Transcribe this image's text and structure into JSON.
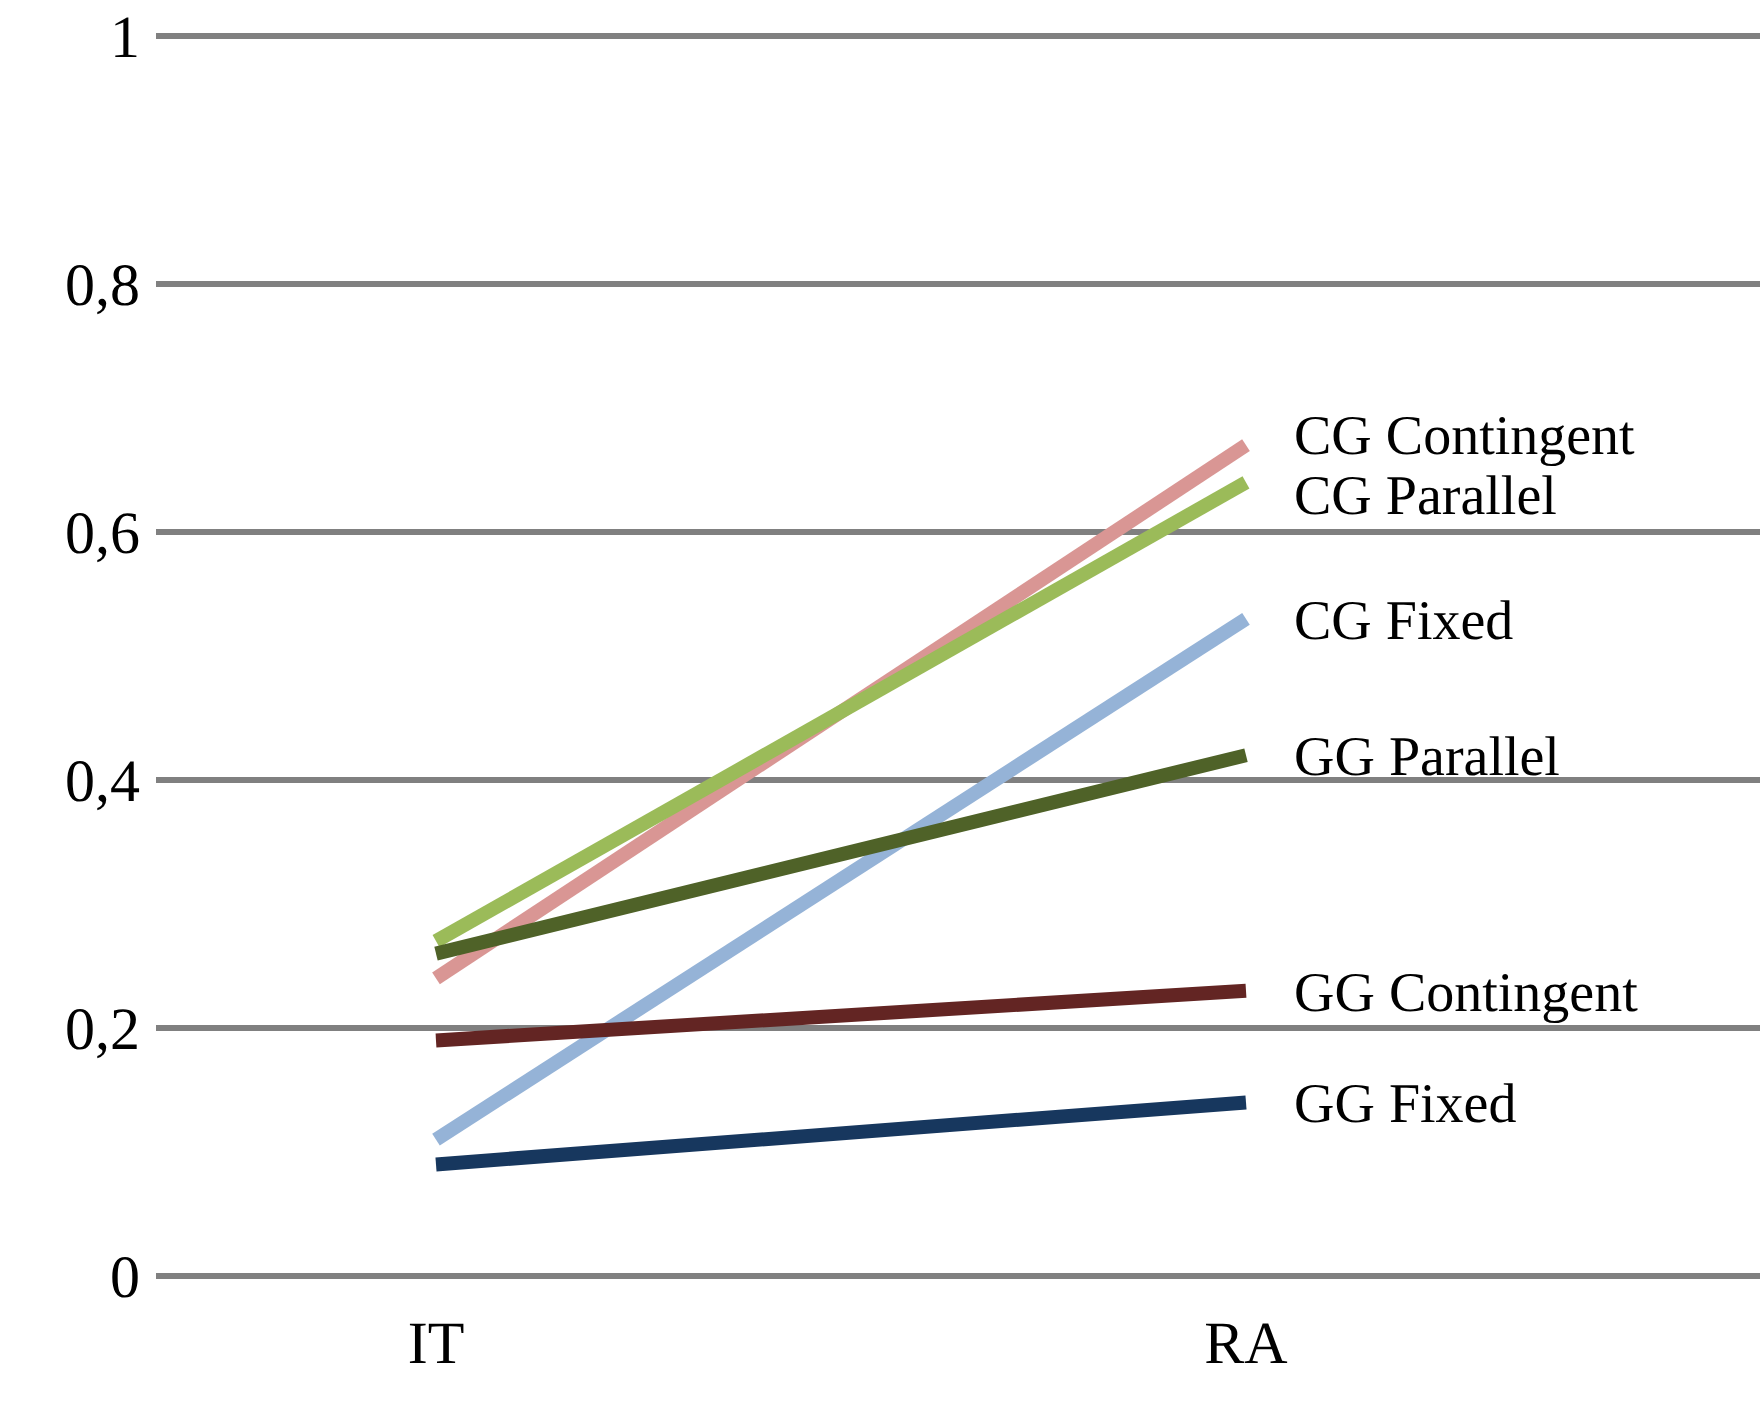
{
  "chart_data": {
    "type": "line",
    "categories": [
      "IT",
      "RA"
    ],
    "ylim": [
      0,
      1
    ],
    "yticks": [
      0,
      {
        "value": 0.2,
        "label": "0,2"
      },
      {
        "value": 0.4,
        "label": "0,4"
      },
      {
        "value": 0.6,
        "label": "0,6"
      },
      {
        "value": 0.8,
        "label": "0,8"
      },
      1
    ],
    "grid": "y",
    "series": [
      {
        "name": "CG Contingent",
        "color": "#d99694",
        "values": [
          0.24,
          0.67
        ]
      },
      {
        "name": "CG Parallel",
        "color": "#9bbb59",
        "values": [
          0.27,
          0.64
        ]
      },
      {
        "name": "CG Fixed",
        "color": "#95b3d7",
        "values": [
          0.11,
          0.53
        ]
      },
      {
        "name": "GG Parallel",
        "color": "#4f6228",
        "values": [
          0.26,
          0.42
        ]
      },
      {
        "name": "GG Contingent",
        "color": "#632523",
        "values": [
          0.19,
          0.23
        ]
      },
      {
        "name": "GG Fixed",
        "color": "#17375e",
        "values": [
          0.09,
          0.14
        ]
      }
    ]
  }
}
